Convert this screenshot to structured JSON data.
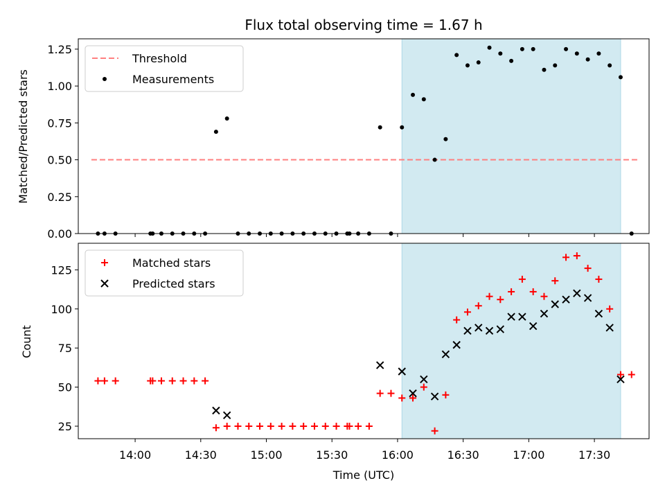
{
  "chart_data": [
    {
      "type": "scatter",
      "title": "Flux total observing time = 1.67 h",
      "xlabel": "",
      "ylabel": "Matched/Predicted stars",
      "xlim": [
        "13:34",
        "17:55"
      ],
      "ylim": [
        0,
        1.32
      ],
      "yticks": [
        "0.00",
        "0.25",
        "0.50",
        "0.75",
        "1.00",
        "1.25"
      ],
      "shaded_span": [
        "16:02",
        "17:42"
      ],
      "shade_color": "#add8e6",
      "legend_position": "upper-left",
      "series": [
        {
          "name": "Threshold",
          "style": "dashed-line",
          "color": "#ff7f7f",
          "x": [
            "13:40",
            "17:50"
          ],
          "y": [
            0.5,
            0.5
          ]
        },
        {
          "name": "Measurements",
          "style": "dot",
          "color": "#000000",
          "x": [
            "13:43",
            "13:46",
            "13:51",
            "14:07",
            "14:08",
            "14:12",
            "14:17",
            "14:22",
            "14:27",
            "14:32",
            "14:37",
            "14:42",
            "14:47",
            "14:52",
            "14:57",
            "15:02",
            "15:07",
            "15:12",
            "15:17",
            "15:22",
            "15:27",
            "15:32",
            "15:37",
            "15:38",
            "15:42",
            "15:47",
            "15:52",
            "15:57",
            "16:02",
            "16:07",
            "16:12",
            "16:17",
            "16:22",
            "16:27",
            "16:32",
            "16:37",
            "16:42",
            "16:47",
            "16:52",
            "16:57",
            "17:02",
            "17:07",
            "17:12",
            "17:17",
            "17:22",
            "17:27",
            "17:32",
            "17:37",
            "17:42",
            "17:47"
          ],
          "y": [
            0,
            0,
            0,
            0,
            0,
            0,
            0,
            0,
            0,
            0,
            0.69,
            0.78,
            0,
            0,
            0,
            0,
            0,
            0,
            0,
            0,
            0,
            0,
            0,
            0,
            0,
            0,
            0.72,
            0,
            0.72,
            0.94,
            0.91,
            0.5,
            0.64,
            1.21,
            1.14,
            1.16,
            1.26,
            1.22,
            1.17,
            1.25,
            1.25,
            1.11,
            1.14,
            1.25,
            1.22,
            1.18,
            1.22,
            1.14,
            1.06,
            0
          ]
        }
      ]
    },
    {
      "type": "scatter",
      "title": "",
      "xlabel": "Time (UTC)",
      "ylabel": "Count",
      "xlim": [
        "13:34",
        "17:55"
      ],
      "ylim": [
        17,
        142
      ],
      "xticks": [
        "14:00",
        "14:30",
        "15:00",
        "15:30",
        "16:00",
        "16:30",
        "17:00",
        "17:30"
      ],
      "yticks": [
        "25",
        "50",
        "75",
        "100",
        "125"
      ],
      "shaded_span": [
        "16:02",
        "17:42"
      ],
      "shade_color": "#add8e6",
      "legend_position": "upper-left",
      "series": [
        {
          "name": "Matched stars",
          "style": "plus",
          "color": "#ff0000",
          "x": [
            "13:43",
            "13:46",
            "13:51",
            "14:07",
            "14:08",
            "14:12",
            "14:17",
            "14:22",
            "14:27",
            "14:32",
            "14:37",
            "14:42",
            "14:47",
            "14:52",
            "14:57",
            "15:02",
            "15:07",
            "15:12",
            "15:17",
            "15:22",
            "15:27",
            "15:32",
            "15:37",
            "15:38",
            "15:42",
            "15:47",
            "15:52",
            "15:57",
            "16:02",
            "16:07",
            "16:12",
            "16:17",
            "16:22",
            "16:27",
            "16:32",
            "16:37",
            "16:42",
            "16:47",
            "16:52",
            "16:57",
            "17:02",
            "17:07",
            "17:12",
            "17:17",
            "17:22",
            "17:27",
            "17:32",
            "17:37",
            "17:42",
            "17:47"
          ],
          "y": [
            54,
            54,
            54,
            54,
            54,
            54,
            54,
            54,
            54,
            54,
            24,
            25,
            25,
            25,
            25,
            25,
            25,
            25,
            25,
            25,
            25,
            25,
            25,
            25,
            25,
            25,
            46,
            46,
            43,
            43,
            50,
            22,
            45,
            93,
            98,
            102,
            108,
            106,
            111,
            119,
            111,
            108,
            118,
            133,
            134,
            126,
            119,
            100,
            58,
            58
          ]
        },
        {
          "name": "Predicted stars",
          "style": "x",
          "color": "#000000",
          "x": [
            "14:37",
            "14:42",
            "15:52",
            "16:02",
            "16:07",
            "16:12",
            "16:17",
            "16:22",
            "16:27",
            "16:32",
            "16:37",
            "16:42",
            "16:47",
            "16:52",
            "16:57",
            "17:02",
            "17:07",
            "17:12",
            "17:17",
            "17:22",
            "17:27",
            "17:32",
            "17:37",
            "17:42"
          ],
          "y": [
            35,
            32,
            64,
            60,
            46,
            55,
            44,
            71,
            77,
            86,
            88,
            86,
            87,
            95,
            95,
            89,
            97,
            103,
            106,
            110,
            107,
            97,
            88,
            55
          ]
        }
      ]
    }
  ]
}
